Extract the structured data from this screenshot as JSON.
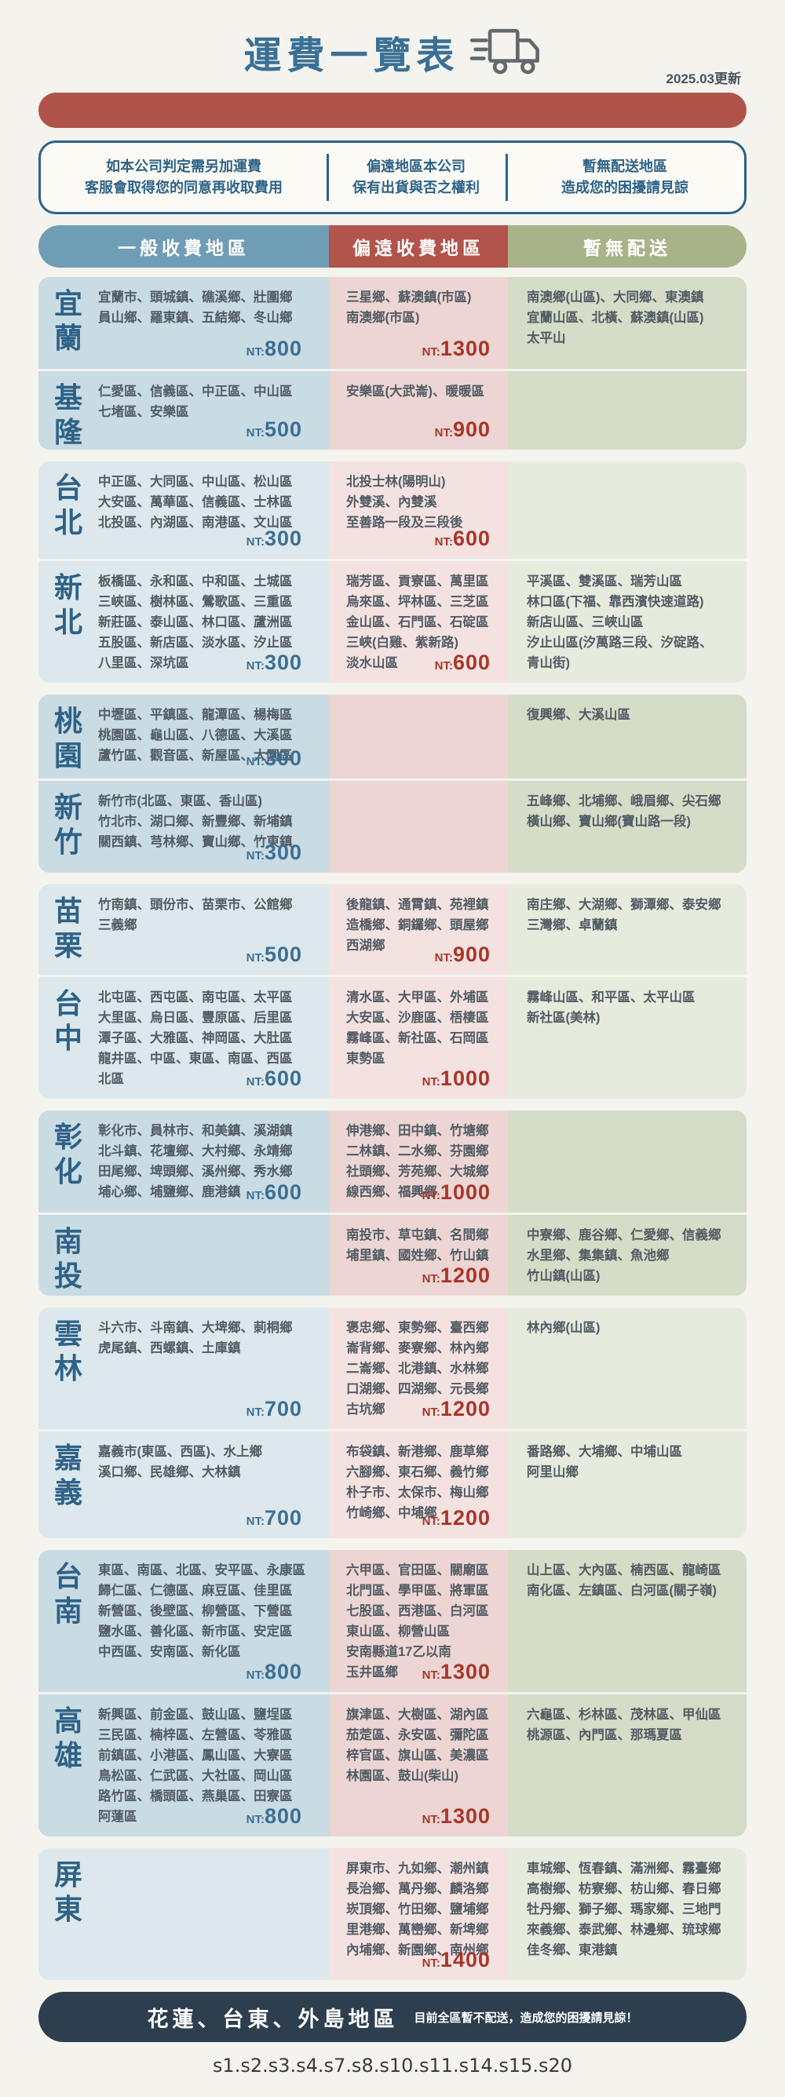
{
  "header": {
    "title": "運費一覽表",
    "updated": "2025.03更新"
  },
  "notice": {
    "cols": [
      {
        "line1": "如本公司判定需另加運費",
        "line2": "客服會取得您的同意再收取費用"
      },
      {
        "line1": "偏遠地區本公司",
        "line2": "保有出貨與否之權利"
      },
      {
        "line1": "暫無配送地區",
        "line2": "造成您的困擾請見諒"
      }
    ]
  },
  "column_headers": {
    "general": "一般收費地區",
    "remote": "偏遠收費地區",
    "none": "暫無配送"
  },
  "fee_prefix": "NT:",
  "colors": {
    "page_bg": "#f4f3ee",
    "title_blue": "#3a7095",
    "accent_red_bar": "#b0544a",
    "header_blue": "#6f9db6",
    "header_red": "#b2544b",
    "header_green": "#a9b389",
    "fee_blue": "#3c6f94",
    "fee_red": "#a93529",
    "footer_navy": "#2d3e4f"
  },
  "blocks": [
    [
      0,
      1
    ],
    [
      2,
      3
    ],
    [
      4,
      5
    ],
    [
      6,
      7
    ],
    [
      8,
      9
    ],
    [
      10,
      11
    ],
    [
      12,
      13
    ],
    [
      14
    ]
  ],
  "rows": [
    {
      "region": "宜蘭",
      "min_height": 117,
      "general": {
        "areas": [
          "宜蘭市、頭城鎮、礁溪鄉、壯圍鄉",
          "員山鄉、羅東鎮、五結鄉、冬山鄉"
        ],
        "fee": "800"
      },
      "remote": {
        "areas": [
          "三星鄉、蘇澳鎮(市區)",
          "南澳鄉(市區)"
        ],
        "fee": "1300"
      },
      "none": {
        "areas": [
          "南澳鄉(山區)、大同鄉、東澳鎮",
          "宜蘭山區、北橫、蘇澳鎮(山區)",
          "太平山"
        ]
      }
    },
    {
      "region": "基隆",
      "min_height": 88,
      "general": {
        "areas": [
          "仁愛區、信義區、中正區、中山區",
          "七堵區、安樂區"
        ],
        "fee": "500"
      },
      "remote": {
        "areas": [
          "安樂區(大武崙)、暖暖區"
        ],
        "fee": "900"
      },
      "none": {
        "areas": []
      }
    },
    {
      "region": "台北",
      "min_height": 124,
      "general": {
        "areas": [
          "中正區、大同區、中山區、松山區",
          "大安區、萬華區、信義區、士林區",
          "北投區、內湖區、南港區、文山區"
        ],
        "fee": "300"
      },
      "remote": {
        "areas": [
          "北投士林(陽明山)",
          "外雙溪、內雙溪",
          "至善路一段及三段後"
        ],
        "fee": "600"
      },
      "none": {
        "areas": []
      }
    },
    {
      "region": "新北",
      "min_height": 144,
      "general": {
        "areas": [
          "板橋區、永和區、中和區、土城區",
          "三峽區、樹林區、鶯歌區、三重區",
          "新莊區、泰山區、林口區、蘆洲區",
          "五股區、新店區、淡水區、汐止區",
          "八里區、深坑區"
        ],
        "fee": "300"
      },
      "remote": {
        "areas": [
          "瑞芳區、貢寮區、萬里區",
          "烏來區、坪林區、三芝區",
          "金山區、石門區、石碇區",
          "三峽(白雞、紫新路)",
          "淡水山區"
        ],
        "fee": "600"
      },
      "none": {
        "areas": [
          "平溪區、雙溪區、瑞芳山區",
          "林口區(下福、靠西濱快速道路)",
          "新店山區、三峽山區",
          "汐止山區(汐萬路三段、汐碇路、",
          "青山街)"
        ]
      }
    },
    {
      "region": "桃園",
      "min_height": 107,
      "general": {
        "areas": [
          "中壢區、平鎮區、龍潭區、楊梅區",
          "桃園區、龜山區、八德區、大溪區",
          "蘆竹區、觀音區、新屋區、大園區"
        ],
        "fee": "300"
      },
      "remote": {
        "areas": [],
        "fee": null
      },
      "none": {
        "areas": [
          "復興鄉、大溪山區"
        ]
      }
    },
    {
      "region": "新竹",
      "min_height": 117,
      "general": {
        "areas": [
          "新竹市(北區、東區、香山區)",
          "竹北市、湖口鄉、新豐鄉、新埔鎮",
          "關西鎮、芎林鄉、寶山鄉、竹東鎮"
        ],
        "fee": "300"
      },
      "remote": {
        "areas": [],
        "fee": null
      },
      "none": {
        "areas": [
          "五峰鄉、北埔鄉、峨眉鄉、尖石鄉",
          "橫山鄉、寶山鄉(寶山路一段)"
        ]
      }
    },
    {
      "region": "苗栗",
      "min_height": 115,
      "general": {
        "areas": [
          "竹南鎮、頭份市、苗栗市、公館鄉",
          "三義鄉"
        ],
        "fee": "500"
      },
      "remote": {
        "areas": [
          "後龍鎮、通霄鎮、苑裡鎮",
          "造橋鄉、銅鑼鄉、頭屋鄉",
          "西湖鄉"
        ],
        "fee": "900"
      },
      "none": {
        "areas": [
          "南庄鄉、大湖鄉、獅潭鄉、泰安鄉",
          "三灣鄉、卓蘭鎮"
        ]
      }
    },
    {
      "region": "台中",
      "min_height": 130,
      "general": {
        "areas": [
          "北屯區、西屯區、南屯區、太平區",
          "大里區、烏日區、豐原區、后里區",
          "潭子區、大雅區、神岡區、大肚區",
          "龍井區、中區、東區、南區、西區",
          "北區"
        ],
        "fee": "600"
      },
      "remote": {
        "areas": [
          "清水區、大甲區、外埔區",
          "大安區、沙鹿區、梧棲區",
          "霧峰區、新社區、石岡區",
          "東勢區"
        ],
        "fee": "1000"
      },
      "none": {
        "areas": [
          "霧峰山區、和平區、太平山區",
          "新社區(美林)"
        ]
      }
    },
    {
      "region": "彰化",
      "min_height": 130,
      "general": {
        "areas": [
          "彰化市、員林市、和美鎮、溪湖鎮",
          "北斗鎮、花壇鄉、大村鄉、永靖鄉",
          "田尾鄉、埤頭鄉、溪州鄉、秀水鄉",
          "埔心鄉、埔鹽鄉、鹿港鎮"
        ],
        "fee": "600"
      },
      "remote": {
        "areas": [
          "伸港鄉、田中鎮、竹塘鄉",
          "二林鎮、二水鄉、芬園鄉",
          "社頭鄉、芳苑鄉、大城鄉",
          "線西鄉、福興鄉"
        ],
        "fee": "1000"
      },
      "none": {
        "areas": []
      }
    },
    {
      "region": "南投",
      "min_height": 95,
      "general": {
        "areas": [],
        "fee": null
      },
      "remote": {
        "areas": [
          "南投市、草屯鎮、名間鄉",
          "埔里鎮、國姓鄉、竹山鎮"
        ],
        "fee": "1200"
      },
      "none": {
        "areas": [
          "中寮鄉、鹿谷鄉、仁愛鄉、信義鄉",
          "水里鄉、集集鎮、魚池鄉",
          "竹山鎮(山區)"
        ]
      }
    },
    {
      "region": "雲林",
      "min_height": 126,
      "general": {
        "areas": [
          "斗六市、斗南鎮、大埤鄉、莿桐鄉",
          "虎尾鎮、西螺鎮、土庫鎮"
        ],
        "fee": "700"
      },
      "remote": {
        "areas": [
          "褒忠鄉、東勢鄉、臺西鄉",
          "崙背鄉、麥寮鄉、林內鄉",
          "二崙鄉、北港鎮、水林鄉",
          "口湖鄉、四湖鄉、元長鄉",
          "古坑鄉"
        ],
        "fee": "1200"
      },
      "none": {
        "areas": [
          "林內鄉(山區)"
        ]
      }
    },
    {
      "region": "嘉義",
      "min_height": 136,
      "general": {
        "areas": [
          "嘉義市(東區、西區)、水上鄉",
          "溪口鄉、民雄鄉、大林鎮"
        ],
        "fee": "700"
      },
      "remote": {
        "areas": [
          "布袋鎮、新港鄉、鹿草鄉",
          "六腳鄉、東石鄉、義竹鄉",
          "朴子市、太保市、梅山鄉",
          "竹崎鄉、中埔鄉"
        ],
        "fee": "1200"
      },
      "none": {
        "areas": [
          "番路鄉、大埔鄉、中埔山區",
          "阿里山鄉"
        ]
      }
    },
    {
      "region": "台南",
      "min_height": 140,
      "general": {
        "areas": [
          "東區、南區、北區、安平區、永康區",
          "歸仁區、仁德區、麻豆區、佳里區",
          "新營區、後壁區、柳營區、下營區",
          "鹽水區、善化區、新市區、安定區",
          "中西區、安南區、新化區"
        ],
        "fee": "800"
      },
      "remote": {
        "areas": [
          "六甲區、官田區、關廟區",
          "北門區、學甲區、將軍區",
          "七股區、西港區、白河區",
          "東山區、柳營山區",
          "安南縣道17乙以南",
          "玉井區鄉"
        ],
        "fee": "1300"
      },
      "none": {
        "areas": [
          "山上區、大內區、楠西區、龍崎區",
          "南化區、左鎮區、白河區(關子嶺)"
        ]
      }
    },
    {
      "region": "高雄",
      "min_height": 150,
      "general": {
        "areas": [
          "新興區、前金區、鼓山區、鹽埕區",
          "三民區、楠梓區、左營區、苓雅區",
          "前鎮區、小港區、鳳山區、大寮區",
          "鳥松區、仁武區、大社區、岡山區",
          "路竹區、橋頭區、燕巢區、田寮區",
          "阿蓮區"
        ],
        "fee": "800"
      },
      "remote": {
        "areas": [
          "旗津區、大樹區、湖內區",
          "茄萣區、永安區、彌陀區",
          "梓官區、旗山區、美濃區",
          "林園區、鼓山(柴山)"
        ],
        "fee": "1300"
      },
      "none": {
        "areas": [
          "六龜區、杉林區、茂林區、甲仙區",
          "桃源區、內門區、那瑪夏區"
        ]
      }
    },
    {
      "region": "屏東",
      "min_height": 168,
      "general": {
        "areas": [],
        "fee": null
      },
      "remote": {
        "areas": [
          "屏東市、九如鄉、潮州鎮",
          "長治鄉、萬丹鄉、麟洛鄉",
          "崁頂鄉、竹田鄉、鹽埔鄉",
          "里港鄉、萬巒鄉、新埤鄉",
          "內埔鄉、新園鄉、南州鄉"
        ],
        "fee": "1400"
      },
      "none": {
        "areas": [
          "車城鄉、恆春鎮、滿洲鄉、霧臺鄉",
          "高樹鄉、枋寮鄉、枋山鄉、春日鄉",
          "牡丹鄉、獅子鄉、瑪家鄉、三地門",
          "來義鄉、泰武鄉、林邊鄉、琉球鄉",
          "佳冬鄉、東港鎮"
        ]
      }
    }
  ],
  "footer": {
    "main": "花蓮、台東、外島地區",
    "sub": "目前全區暫不配送，造成您的困擾請見諒！"
  },
  "bottom_code": "s1.s2.s3.s4.s7.s8.s10.s11.s14.s15.s20"
}
